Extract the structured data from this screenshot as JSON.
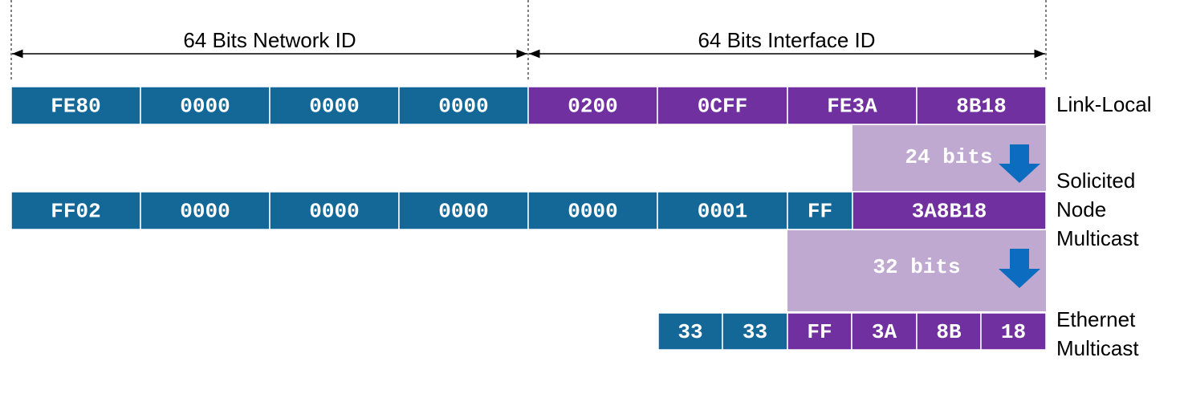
{
  "header": {
    "network": "64 Bits Network ID",
    "interface": "64 Bits Interface ID"
  },
  "rows": [
    {
      "label": [
        "Link-Local"
      ],
      "cells": [
        "FE80",
        "0000",
        "0000",
        "0000",
        "0200",
        "0CFF",
        "FE3A",
        "8B18"
      ]
    },
    {
      "label": [
        "Solicited",
        "Node",
        "Multicast"
      ],
      "cells": [
        "FF02",
        "0000",
        "0000",
        "0000",
        "0000",
        "0001",
        "FF",
        "3A8B18"
      ]
    },
    {
      "label": [
        "Ethernet",
        "Multicast"
      ],
      "cells": [
        "33",
        "33",
        "FF",
        "3A",
        "8B",
        "18"
      ]
    }
  ],
  "annotations": [
    "24 bits",
    "32 bits"
  ]
}
